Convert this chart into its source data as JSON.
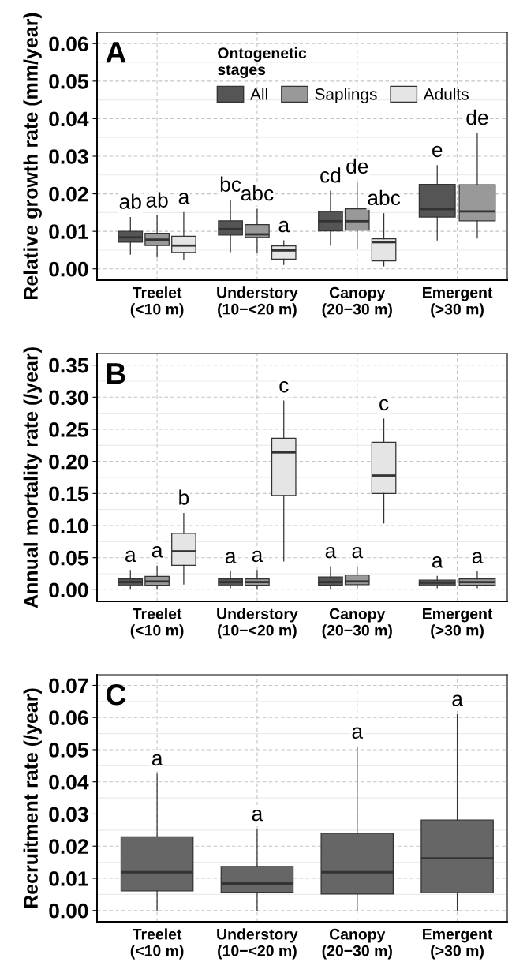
{
  "chart_data": [
    {
      "type": "box",
      "title": "A",
      "ylabel": "Relative growth rate (mm/year)",
      "categories": [
        "Treelet\n(<10 m)",
        "Understory\n(10−<20 m)",
        "Canopy\n(20−30 m)",
        "Emergent\n(>30 m)"
      ],
      "ylim": [
        -0.003,
        0.063
      ],
      "yticks": [
        {
          "value": 0,
          "label": "0.00"
        },
        {
          "value": 0.01,
          "label": "0.01"
        },
        {
          "value": 0.02,
          "label": "0.02"
        },
        {
          "value": 0.03,
          "label": "0.03"
        },
        {
          "value": 0.04,
          "label": "0.04"
        },
        {
          "value": 0.05,
          "label": "0.05"
        },
        {
          "value": 0.06,
          "label": "0.06"
        }
      ],
      "grid": true,
      "legend": "top",
      "legend_title": "Ontogenetic\nstages",
      "series": [
        {
          "name": "All",
          "color": "#555555",
          "boxes": [
            {
              "low": 0.0039,
              "q1": 0.0071,
              "median": 0.0084,
              "q3": 0.01,
              "high": 0.0137
            },
            {
              "low": 0.0046,
              "q1": 0.009,
              "median": 0.0106,
              "q3": 0.0128,
              "high": 0.0183
            },
            {
              "low": 0.0063,
              "q1": 0.0101,
              "median": 0.0127,
              "q3": 0.0153,
              "high": 0.0207
            },
            {
              "low": 0.0077,
              "q1": 0.0138,
              "median": 0.0159,
              "q3": 0.0225,
              "high": 0.0275
            }
          ]
        },
        {
          "name": "Saplings",
          "color": "#999999",
          "boxes": [
            {
              "low": 0.0032,
              "q1": 0.0062,
              "median": 0.0078,
              "q3": 0.0095,
              "high": 0.0141
            },
            {
              "low": 0.0044,
              "q1": 0.0084,
              "median": 0.0092,
              "q3": 0.0118,
              "high": 0.0159
            },
            {
              "low": 0.0054,
              "q1": 0.0103,
              "median": 0.0127,
              "q3": 0.016,
              "high": 0.0231
            },
            {
              "low": 0.0082,
              "q1": 0.0128,
              "median": 0.0153,
              "q3": 0.0224,
              "high": 0.0361
            }
          ]
        },
        {
          "name": "Adults",
          "color": "#e5e5e5",
          "boxes": [
            {
              "low": 0.0025,
              "q1": 0.0044,
              "median": 0.0062,
              "q3": 0.0087,
              "high": 0.015
            },
            {
              "low": 0.0012,
              "q1": 0.0026,
              "median": 0.0049,
              "q3": 0.0061,
              "high": 0.0075
            },
            {
              "low": 0.0008,
              "q1": 0.0021,
              "median": 0.0071,
              "q3": 0.008,
              "high": 0.0147
            },
            null
          ]
        }
      ],
      "annotations": [
        "ab",
        "ab",
        "a",
        "bc",
        "abc",
        "a",
        "cd",
        "de",
        "abc",
        "e",
        "de"
      ]
    },
    {
      "type": "box",
      "title": "B",
      "ylabel": "Annual mortality rate (/year)",
      "categories": [
        "Treelet\n(<10 m)",
        "Understory\n(10−<20 m)",
        "Canopy\n(20−30 m)",
        "Emergent\n(>30 m)"
      ],
      "ylim": [
        -0.018,
        0.368
      ],
      "yticks": [
        {
          "value": 0,
          "label": "0.00"
        },
        {
          "value": 0.05,
          "label": "0.05"
        },
        {
          "value": 0.1,
          "label": "0.10"
        },
        {
          "value": 0.15,
          "label": "0.15"
        },
        {
          "value": 0.2,
          "label": "0.20"
        },
        {
          "value": 0.25,
          "label": "0.25"
        },
        {
          "value": 0.3,
          "label": "0.30"
        },
        {
          "value": 0.35,
          "label": "0.35"
        }
      ],
      "grid": true,
      "series": [
        {
          "color": "#555555",
          "boxes": [
            {
              "low": 0.002,
              "q1": 0.006,
              "median": 0.012,
              "q3": 0.017,
              "high": 0.03
            },
            {
              "low": 0.003,
              "q1": 0.006,
              "median": 0.012,
              "q3": 0.017,
              "high": 0.028
            },
            {
              "low": 0.002,
              "q1": 0.007,
              "median": 0.012,
              "q3": 0.02,
              "high": 0.036
            },
            {
              "low": 0.003,
              "q1": 0.006,
              "median": 0.011,
              "q3": 0.015,
              "high": 0.021
            }
          ]
        },
        {
          "color": "#999999",
          "boxes": [
            {
              "low": 0.002,
              "q1": 0.007,
              "median": 0.013,
              "q3": 0.021,
              "high": 0.037
            },
            {
              "low": 0.002,
              "q1": 0.007,
              "median": 0.012,
              "q3": 0.017,
              "high": 0.03
            },
            {
              "low": 0.003,
              "q1": 0.008,
              "median": 0.013,
              "q3": 0.023,
              "high": 0.036
            },
            {
              "low": 0.003,
              "q1": 0.007,
              "median": 0.012,
              "q3": 0.017,
              "high": 0.028
            }
          ]
        },
        {
          "color": "#e5e5e5",
          "boxes": [
            {
              "low": 0.009,
              "q1": 0.038,
              "median": 0.06,
              "q3": 0.088,
              "high": 0.119
            },
            {
              "low": 0.045,
              "q1": 0.147,
              "median": 0.214,
              "q3": 0.236,
              "high": 0.294
            },
            {
              "low": 0.104,
              "q1": 0.15,
              "median": 0.178,
              "q3": 0.23,
              "high": 0.266
            },
            null
          ]
        }
      ],
      "annotations": [
        "a",
        "a",
        "b",
        "a",
        "a",
        "c",
        "a",
        "a",
        "c",
        "a",
        "a"
      ]
    },
    {
      "type": "box",
      "title": "C",
      "ylabel": "Recruitment rate (/year)",
      "categories": [
        "Treelet\n(<10 m)",
        "Understory\n(10−<20 m)",
        "Canopy\n(20−30 m)",
        "Emergent\n(>30 m)"
      ],
      "ylim": [
        -0.0035,
        0.0733
      ],
      "yticks": [
        {
          "value": 0,
          "label": "0.00"
        },
        {
          "value": 0.01,
          "label": "0.01"
        },
        {
          "value": 0.02,
          "label": "0.02"
        },
        {
          "value": 0.03,
          "label": "0.03"
        },
        {
          "value": 0.04,
          "label": "0.04"
        },
        {
          "value": 0.05,
          "label": "0.05"
        },
        {
          "value": 0.06,
          "label": "0.06"
        },
        {
          "value": 0.07,
          "label": "0.07"
        }
      ],
      "grid": true,
      "series": [
        {
          "color": "#666666",
          "boxes": [
            {
              "low": 0.0,
              "q1": 0.0061,
              "median": 0.0119,
              "q3": 0.0229,
              "high": 0.0424
            },
            {
              "low": 0.0,
              "q1": 0.0057,
              "median": 0.0084,
              "q3": 0.0137,
              "high": 0.0252
            },
            {
              "low": 0.0,
              "q1": 0.0051,
              "median": 0.0119,
              "q3": 0.024,
              "high": 0.0508
            },
            {
              "low": 0.0,
              "q1": 0.0055,
              "median": 0.0162,
              "q3": 0.0281,
              "high": 0.0609
            }
          ]
        }
      ],
      "annotations": [
        "a",
        "a",
        "a",
        "a"
      ]
    }
  ]
}
